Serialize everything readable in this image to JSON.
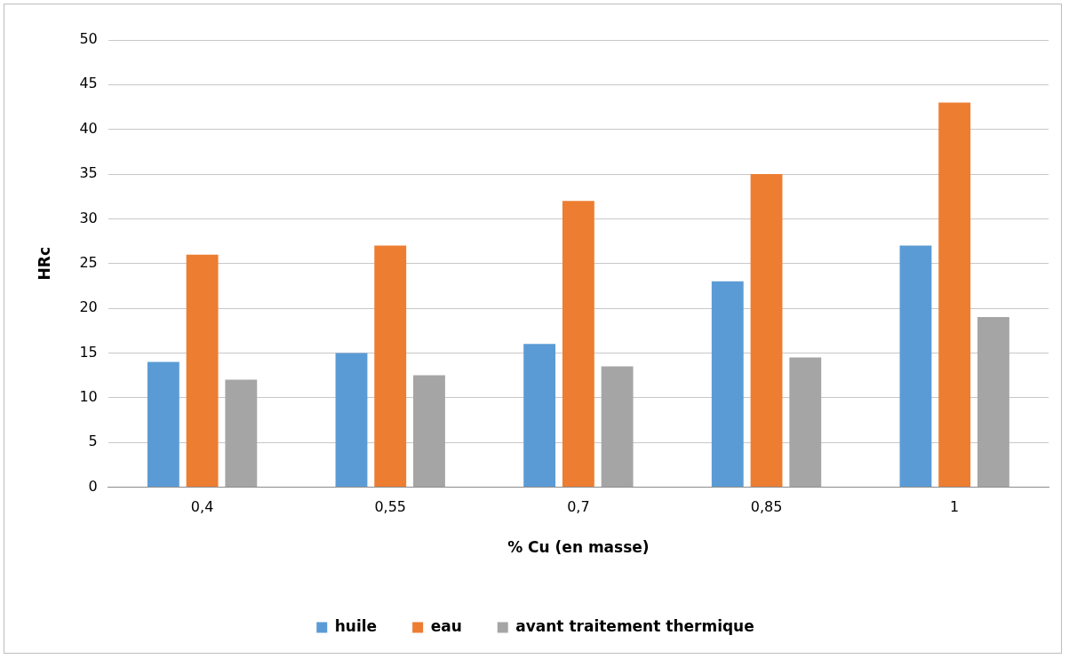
{
  "chart_data": {
    "type": "bar",
    "xlabel": "% Cu (en masse)",
    "ylabel": "HRc",
    "categories": [
      "0,4",
      "0,55",
      "0,7",
      "0,85",
      "1"
    ],
    "series": [
      {
        "name": "huile",
        "color": "#5b9bd5",
        "values": [
          14,
          15,
          16,
          23,
          27
        ]
      },
      {
        "name": "eau",
        "color": "#ed7d31",
        "values": [
          26,
          27,
          32,
          35,
          43
        ]
      },
      {
        "name": "avant traitement thermique",
        "color": "#a5a5a5",
        "values": [
          12,
          12.5,
          13.5,
          14.5,
          19
        ]
      }
    ],
    "ylim": [
      0,
      50
    ],
    "yticks": [
      0,
      5,
      10,
      15,
      20,
      25,
      30,
      35,
      40,
      45,
      50
    ],
    "grid": "y",
    "legend": "bottom"
  }
}
